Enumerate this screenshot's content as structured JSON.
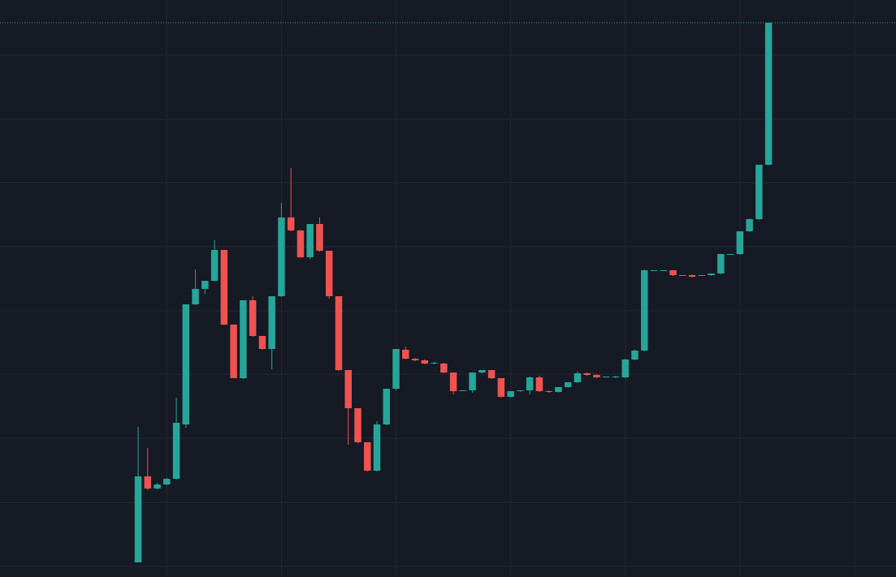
{
  "chart_data": {
    "type": "candlestick",
    "x": [
      0,
      1,
      2,
      3,
      4,
      5,
      6,
      7,
      8,
      9,
      10,
      11,
      12,
      13,
      14,
      15,
      16,
      17,
      18,
      19,
      20,
      21,
      22,
      23,
      24,
      25,
      26,
      27,
      28,
      29,
      30,
      31,
      32,
      33,
      34,
      35,
      36,
      37,
      38,
      39,
      40,
      41,
      42,
      43,
      44,
      45,
      46,
      47,
      48,
      49,
      50,
      51,
      52,
      53,
      54,
      55,
      56,
      57,
      58,
      59,
      60,
      61,
      62,
      63,
      64,
      65,
      66
    ],
    "open": [
      5,
      111,
      96,
      101,
      108,
      175,
      323,
      342,
      352,
      390,
      298,
      232,
      328,
      284,
      268,
      333,
      430,
      414,
      381,
      422,
      389,
      333,
      242,
      195,
      153,
      118,
      175,
      219,
      267,
      256,
      254,
      250,
      250,
      239,
      216,
      217,
      239,
      242,
      232,
      209,
      216,
      217,
      233,
      216,
      215,
      221,
      227,
      238,
      236,
      233,
      233,
      233,
      255,
      266,
      364,
      365,
      365,
      359,
      359,
      358,
      359,
      361,
      385,
      385,
      413,
      428,
      495
    ],
    "high": [
      172,
      146,
      103,
      109,
      208,
      323,
      366,
      352,
      402,
      390,
      298,
      328,
      333,
      284,
      333,
      448,
      491,
      415,
      422,
      430,
      389,
      333,
      242,
      195,
      153,
      179,
      219,
      268,
      271,
      257,
      255,
      252,
      251,
      239,
      217,
      239,
      242,
      242,
      232,
      216,
      217,
      234,
      235,
      217,
      221,
      227,
      240,
      239,
      237,
      234,
      235,
      256,
      267,
      366,
      365,
      365,
      365,
      359,
      360,
      359,
      361,
      385,
      385,
      413,
      429,
      495,
      670
    ],
    "low": [
      5,
      94,
      95,
      100,
      107,
      171,
      322,
      336,
      351,
      297,
      232,
      231,
      283,
      267,
      243,
      332,
      413,
      380,
      379,
      388,
      330,
      241,
      150,
      152,
      117,
      117,
      174,
      217,
      255,
      253,
      249,
      249,
      238,
      212,
      216,
      214,
      238,
      231,
      208,
      208,
      215,
      212,
      215,
      214,
      214,
      220,
      226,
      235,
      232,
      233,
      232,
      232,
      254,
      265,
      364,
      364,
      358,
      358,
      356,
      358,
      358,
      360,
      384,
      384,
      412,
      427,
      494
    ],
    "close": [
      111,
      96,
      101,
      108,
      177,
      323,
      342,
      352,
      390,
      298,
      232,
      328,
      284,
      268,
      333,
      430,
      414,
      381,
      422,
      389,
      333,
      242,
      195,
      153,
      118,
      175,
      219,
      268,
      256,
      254,
      250,
      251,
      239,
      216,
      217,
      239,
      242,
      232,
      209,
      216,
      217,
      233,
      216,
      215,
      221,
      227,
      238,
      236,
      233,
      234,
      234,
      255,
      266,
      365,
      365,
      365,
      359,
      358,
      357,
      359,
      361,
      385,
      385,
      413,
      428,
      495,
      670
    ],
    "up_color": "#26a69a",
    "down_color": "#ef5350",
    "xlim": [
      -14.46,
      79.34
    ],
    "xticks": [
      3,
      15,
      27,
      39,
      51,
      63,
      75
    ],
    "ylim": [
      -13,
      698
    ],
    "yticks": [
      0,
      79,
      158,
      237,
      315,
      394,
      473,
      551,
      630
    ],
    "grid": true,
    "last_price_line": true
  }
}
